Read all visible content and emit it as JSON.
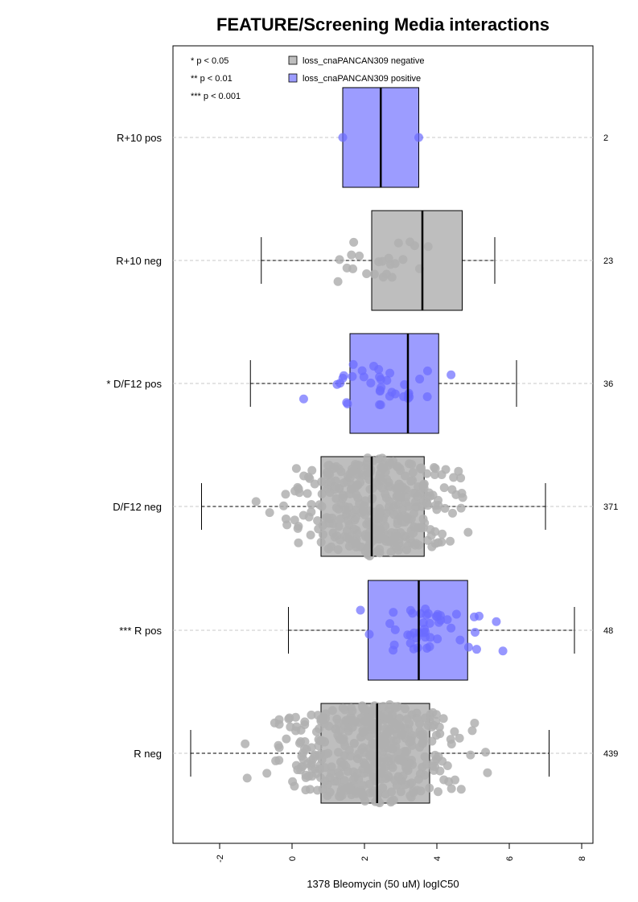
{
  "chart_data": {
    "type": "box",
    "title": "FEATURE/Screening Media interactions",
    "xlabel": "1378 Bleomycin (50 uM) logIC50",
    "ylabel": "",
    "xlim": [
      -3.4,
      8.3
    ],
    "xticks": [
      -2,
      0,
      2,
      4,
      6,
      8
    ],
    "xtick_labels": [
      "-2",
      "0",
      "2",
      "4",
      "6",
      "8"
    ],
    "grid": "dashed horizontal per group",
    "legend_position": "top-left",
    "significance_notes": [
      "* p < 0.05",
      "** p < 0.01",
      "*** p < 0.001"
    ],
    "legend": [
      {
        "label": "loss_cnaPANCAN309 negative",
        "color": "#bebebe"
      },
      {
        "label": "loss_cnaPANCAN309 positive",
        "color": "#9c9cff"
      }
    ],
    "colors": {
      "negative_box": "#bebebe",
      "positive_box": "#9c9cff",
      "negative_point": "#b0b0b0",
      "positive_point": "#6b6bff"
    },
    "groups": [
      {
        "label": "R+10 pos",
        "n": "2",
        "status": "positive",
        "whisker_low": 1.4,
        "q1": 1.4,
        "median": 2.45,
        "q3": 3.5,
        "whisker_high": 3.5,
        "outliers": [],
        "point_count": 2
      },
      {
        "label": "R+10 neg",
        "n": "23",
        "status": "negative",
        "whisker_low": -0.85,
        "q1": 2.2,
        "median": 3.6,
        "q3": 4.7,
        "whisker_high": 5.6,
        "outliers": [],
        "point_count": 23
      },
      {
        "label": "* D/F12 pos",
        "n": "36",
        "status": "positive",
        "whisker_low": -1.15,
        "q1": 1.6,
        "median": 3.2,
        "q3": 4.05,
        "whisker_high": 6.2,
        "outliers": [],
        "point_count": 36
      },
      {
        "label": "D/F12 neg",
        "n": "371",
        "status": "negative",
        "whisker_low": -2.5,
        "q1": 0.8,
        "median": 2.2,
        "q3": 3.65,
        "whisker_high": 7.0,
        "outliers": [],
        "point_count": 371
      },
      {
        "label": "*** R pos",
        "n": "48",
        "status": "positive",
        "whisker_low": -0.1,
        "q1": 2.1,
        "median": 3.5,
        "q3": 4.85,
        "whisker_high": 7.8,
        "outliers": [],
        "point_count": 48
      },
      {
        "label": "R neg",
        "n": "439",
        "status": "negative",
        "whisker_low": -2.8,
        "q1": 0.8,
        "median": 2.35,
        "q3": 3.8,
        "whisker_high": 7.1,
        "outliers": [],
        "point_count": 439
      }
    ]
  }
}
